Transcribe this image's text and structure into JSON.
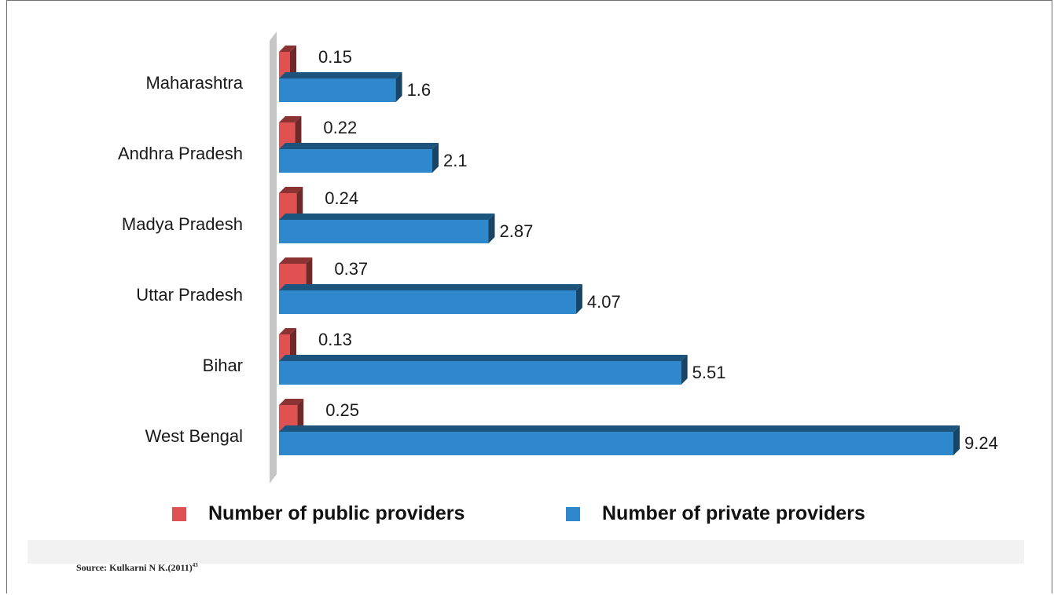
{
  "chart_data": {
    "type": "bar",
    "orientation": "horizontal",
    "categories": [
      "Maharashtra",
      "Andhra Pradesh",
      "Madya Pradesh",
      "Uttar Pradesh",
      "Bihar",
      "West Bengal"
    ],
    "series": [
      {
        "name": "Number of public providers",
        "values": [
          0.15,
          0.22,
          0.24,
          0.37,
          0.13,
          0.25
        ],
        "labels": [
          "0.15",
          "0.22",
          "0.24",
          "0.37",
          "0.13",
          "0.25"
        ],
        "color": "#e05252"
      },
      {
        "name": "Number of private providers",
        "values": [
          1.6,
          2.1,
          2.87,
          4.07,
          5.51,
          9.24
        ],
        "labels": [
          "1.6",
          "2.1",
          "2.87",
          "4.07",
          "5.51",
          "9.24"
        ],
        "color": "#2f87cc"
      }
    ],
    "xlim": [
      0,
      9.24
    ],
    "grid": false,
    "legend_position": "bottom",
    "style": "3d"
  },
  "source": {
    "text": "Source: Kulkarni N K.(2011)",
    "ref": "43"
  }
}
